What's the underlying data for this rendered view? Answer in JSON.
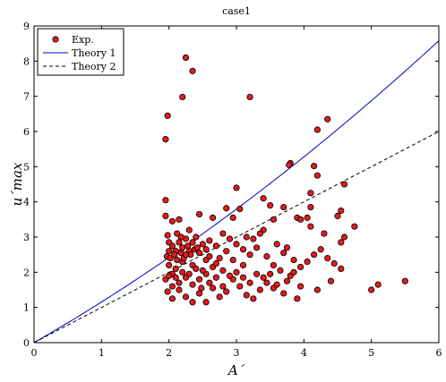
{
  "chart_data": {
    "type": "scatter",
    "title": "case1",
    "xlabel": "A´",
    "ylabel": "u´max",
    "xlim": [
      0,
      6
    ],
    "ylim": [
      0,
      9
    ],
    "xticks": [
      "0",
      "1",
      "2",
      "3",
      "4",
      "5",
      "6"
    ],
    "yticks": [
      "0",
      "1",
      "2",
      "3",
      "4",
      "5",
      "6",
      "7",
      "8",
      "9"
    ],
    "grid": false,
    "legend_position": "top-left",
    "colors": {
      "exp_fill": "#e41a1c",
      "exp_edge": "#000000",
      "theory1": "#0000cc",
      "theory2": "#000000"
    },
    "series": [
      {
        "name": "Exp.",
        "kind": "scatter",
        "points": [
          [
            2.25,
            8.1
          ],
          [
            2.35,
            7.72
          ],
          [
            2.2,
            6.98
          ],
          [
            3.2,
            6.98
          ],
          [
            1.98,
            6.45
          ],
          [
            1.95,
            5.78
          ],
          [
            4.35,
            6.35
          ],
          [
            4.2,
            6.05
          ],
          [
            3.8,
            5.1
          ],
          [
            3.78,
            5.05
          ],
          [
            4.15,
            5.02
          ],
          [
            4.2,
            4.75
          ],
          [
            4.6,
            4.5
          ],
          [
            3.0,
            4.4
          ],
          [
            3.4,
            4.1
          ],
          [
            4.1,
            4.25
          ],
          [
            1.95,
            4.05
          ],
          [
            2.85,
            3.82
          ],
          [
            3.05,
            3.8
          ],
          [
            3.5,
            3.9
          ],
          [
            3.7,
            3.85
          ],
          [
            4.1,
            3.85
          ],
          [
            2.45,
            3.65
          ],
          [
            2.65,
            3.55
          ],
          [
            3.9,
            3.55
          ],
          [
            3.95,
            3.5
          ],
          [
            3.55,
            3.5
          ],
          [
            2.95,
            3.55
          ],
          [
            1.95,
            3.6
          ],
          [
            4.55,
            3.75
          ],
          [
            4.5,
            3.6
          ],
          [
            4.75,
            3.3
          ],
          [
            4.6,
            3.0
          ],
          [
            4.55,
            2.85
          ],
          [
            4.3,
            3.1
          ],
          [
            4.1,
            3.3
          ],
          [
            4.05,
            3.55
          ],
          [
            2.05,
            3.45
          ],
          [
            2.15,
            3.5
          ],
          [
            3.4,
            3.2
          ],
          [
            3.35,
            3.1
          ],
          [
            3.25,
            2.95
          ],
          [
            3.15,
            3.0
          ],
          [
            3.6,
            2.8
          ],
          [
            3.7,
            2.55
          ],
          [
            3.75,
            2.7
          ],
          [
            3.85,
            2.35
          ],
          [
            4.05,
            2.3
          ],
          [
            4.15,
            2.5
          ],
          [
            4.25,
            2.65
          ],
          [
            4.35,
            2.4
          ],
          [
            4.45,
            2.25
          ],
          [
            4.55,
            2.1
          ],
          [
            4.4,
            1.75
          ],
          [
            4.2,
            1.5
          ],
          [
            3.95,
            1.6
          ],
          [
            3.8,
            1.9
          ],
          [
            3.55,
            1.55
          ],
          [
            3.45,
            1.7
          ],
          [
            3.35,
            1.5
          ],
          [
            3.25,
            1.25
          ],
          [
            3.15,
            1.35
          ],
          [
            3.05,
            1.6
          ],
          [
            2.95,
            1.8
          ],
          [
            2.85,
            1.45
          ],
          [
            2.75,
            1.3
          ],
          [
            2.65,
            1.55
          ],
          [
            2.55,
            1.15
          ],
          [
            2.45,
            1.4
          ],
          [
            2.35,
            1.15
          ],
          [
            2.25,
            1.3
          ],
          [
            2.15,
            1.5
          ],
          [
            2.05,
            1.25
          ],
          [
            1.98,
            1.45
          ],
          [
            1.95,
            1.8
          ],
          [
            5.0,
            1.5
          ],
          [
            5.1,
            1.65
          ],
          [
            5.5,
            1.75
          ],
          [
            3.1,
            2.2
          ],
          [
            3.2,
            2.5
          ],
          [
            3.3,
            2.7
          ],
          [
            3.45,
            2.45
          ],
          [
            3.55,
            2.2
          ],
          [
            3.65,
            2.05
          ],
          [
            3.75,
            1.75
          ],
          [
            3.85,
            2.0
          ],
          [
            3.95,
            2.15
          ],
          [
            2.95,
            2.35
          ],
          [
            2.85,
            2.6
          ],
          [
            2.75,
            2.4
          ],
          [
            2.65,
            2.15
          ],
          [
            2.55,
            2.35
          ],
          [
            2.45,
            2.55
          ],
          [
            2.35,
            2.2
          ],
          [
            2.3,
            1.95
          ],
          [
            2.2,
            2.3
          ],
          [
            2.1,
            2.1
          ],
          [
            2.05,
            1.95
          ],
          [
            2.0,
            2.2
          ],
          [
            1.97,
            2.45
          ],
          [
            2.0,
            2.6
          ],
          [
            2.05,
            2.75
          ],
          [
            2.1,
            2.6
          ],
          [
            2.15,
            2.85
          ],
          [
            2.2,
            2.7
          ],
          [
            2.25,
            2.95
          ],
          [
            2.3,
            2.6
          ],
          [
            2.35,
            2.85
          ],
          [
            2.4,
            3.0
          ],
          [
            2.0,
            2.85
          ],
          [
            1.98,
            3.05
          ],
          [
            2.02,
            2.4
          ],
          [
            2.08,
            2.5
          ],
          [
            2.12,
            2.35
          ],
          [
            2.18,
            2.55
          ],
          [
            2.22,
            2.4
          ],
          [
            2.28,
            2.75
          ],
          [
            2.32,
            2.5
          ],
          [
            2.38,
            2.65
          ],
          [
            2.12,
            3.1
          ],
          [
            2.18,
            3.0
          ],
          [
            2.25,
            2.5
          ],
          [
            2.3,
            3.2
          ],
          [
            2.42,
            2.7
          ],
          [
            2.5,
            2.8
          ],
          [
            2.55,
            2.65
          ],
          [
            2.6,
            2.9
          ],
          [
            2.7,
            2.75
          ],
          [
            2.8,
            3.1
          ],
          [
            2.9,
            2.95
          ],
          [
            3.0,
            2.8
          ],
          [
            3.1,
            2.65
          ],
          [
            2.6,
            2.45
          ],
          [
            2.7,
            2.25
          ],
          [
            2.8,
            2.05
          ],
          [
            2.9,
            1.9
          ],
          [
            3.0,
            2.0
          ],
          [
            3.1,
            1.85
          ],
          [
            3.2,
            1.7
          ],
          [
            3.3,
            1.95
          ],
          [
            3.4,
            1.85
          ],
          [
            3.5,
            1.95
          ],
          [
            3.6,
            1.65
          ],
          [
            3.7,
            1.4
          ],
          [
            3.9,
            1.25
          ],
          [
            2.45,
            1.8
          ],
          [
            2.55,
            1.95
          ],
          [
            2.6,
            1.7
          ],
          [
            2.7,
            1.85
          ],
          [
            2.8,
            1.6
          ],
          [
            2.35,
            1.65
          ],
          [
            2.25,
            1.85
          ],
          [
            2.15,
            1.7
          ],
          [
            2.05,
            1.6
          ],
          [
            2.0,
            1.9
          ],
          [
            2.1,
            1.85
          ],
          [
            2.2,
            2.0
          ],
          [
            2.4,
            2.1
          ],
          [
            2.5,
            2.05
          ],
          [
            2.48,
            1.55
          ]
        ]
      },
      {
        "name": "Theory 1",
        "kind": "line",
        "style": "solid",
        "model": "y = 1.1*x + 0.055*x^2",
        "x_range": [
          0,
          6
        ]
      },
      {
        "name": "Theory 2",
        "kind": "line",
        "style": "dashed",
        "model": "y = x",
        "x_range": [
          0,
          6
        ]
      }
    ]
  }
}
